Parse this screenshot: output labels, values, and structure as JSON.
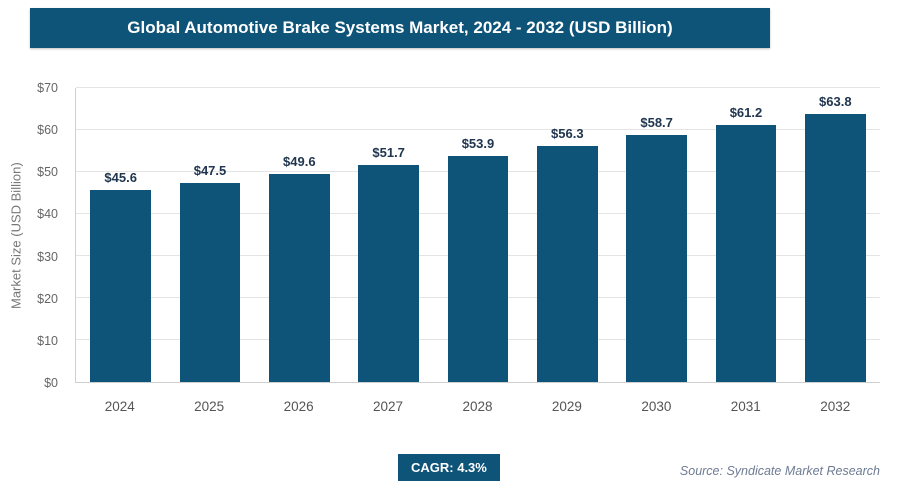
{
  "header": {
    "title": "Global Automotive Brake Systems Market, 2024 - 2032 (USD Billion)"
  },
  "chart_data": {
    "type": "bar",
    "title": "Global Automotive Brake Systems Market, 2024 - 2032 (USD Billion)",
    "categories": [
      "2024",
      "2025",
      "2026",
      "2027",
      "2028",
      "2029",
      "2030",
      "2031",
      "2032"
    ],
    "values": [
      45.6,
      47.5,
      49.6,
      51.7,
      53.9,
      56.3,
      58.7,
      61.2,
      63.8
    ],
    "value_labels": [
      "$45.6",
      "$47.5",
      "$49.6",
      "$51.7",
      "$53.9",
      "$56.3",
      "$58.7",
      "$61.2",
      "$63.8"
    ],
    "xlabel": "",
    "ylabel": "Market Size (USD Billion)",
    "ylim": [
      0,
      70
    ],
    "ytick_step": 10,
    "ytick_prefix": "$",
    "ytick_labels": [
      "$0",
      "$10",
      "$20",
      "$30",
      "$40",
      "$50",
      "$60",
      "$70"
    ],
    "grid": true,
    "legend": "none",
    "bar_color": "#0e5479"
  },
  "footer": {
    "cagr_label": "CAGR: 4.3%",
    "source": "Source: Syndicate Market Research"
  },
  "colors": {
    "accent": "#0e5479",
    "header_bg": "#0e5479",
    "header_text": "#ffffff",
    "bar": "#0e5479",
    "gridline": "#e4e4e4",
    "axis_text": "#666666",
    "value_label_text": "#20354f",
    "source_text": "#6e7b93"
  }
}
